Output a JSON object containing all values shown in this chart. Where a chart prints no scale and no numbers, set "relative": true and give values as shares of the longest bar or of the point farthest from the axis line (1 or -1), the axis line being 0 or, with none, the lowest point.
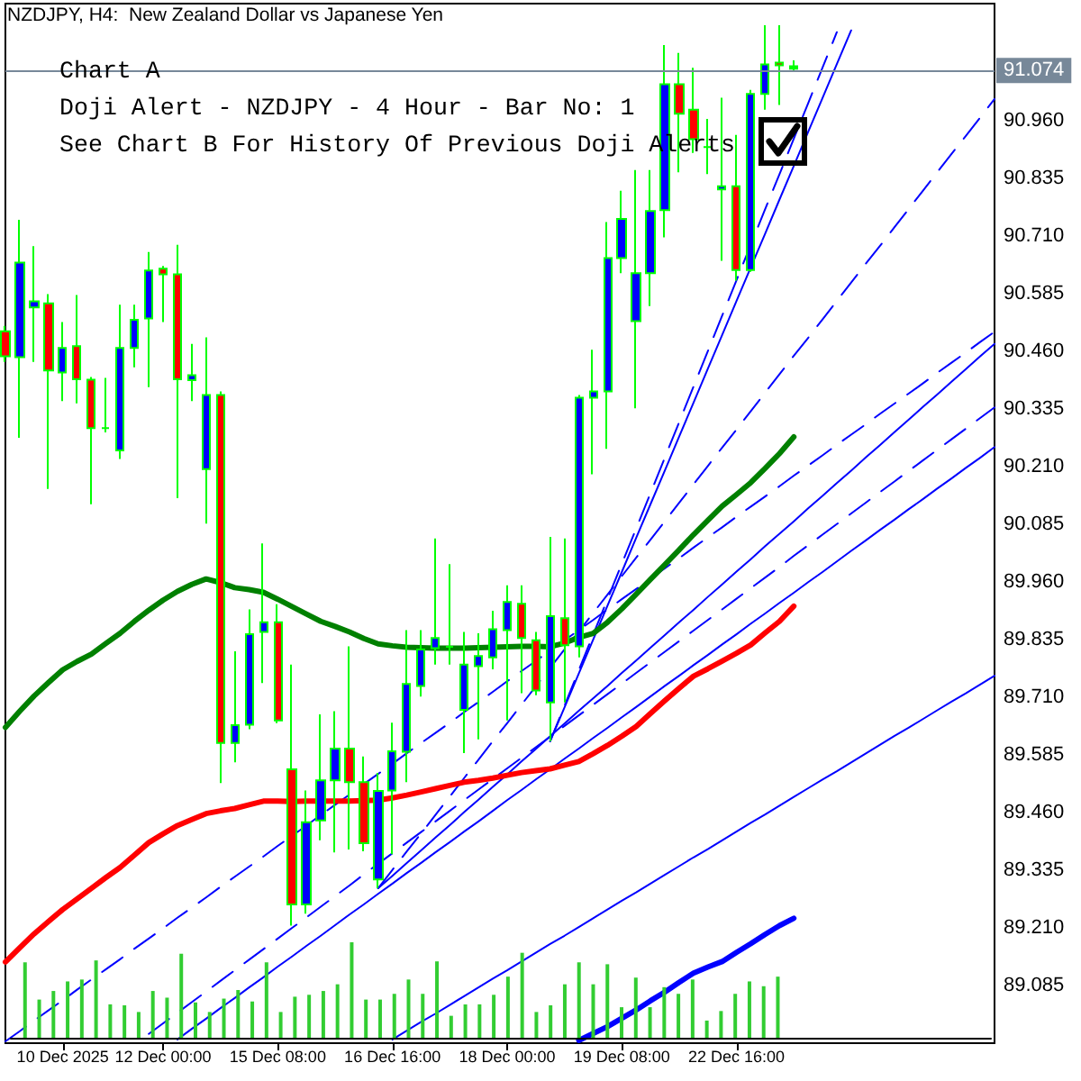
{
  "chart_data": [
    {
      "type": "candlestick",
      "title": "NZDJPY, H4:  New Zealand Dollar vs Japanese Yen",
      "annotations": [
        "Chart A",
        "Doji Alert - NZDJPY - 4 Hour - Bar No: 1",
        "See Chart B For History Of Previous Doji Alerts"
      ],
      "categories": [
        null,
        null,
        null,
        null,
        "10 Dec 2025",
        null,
        null,
        null,
        null,
        null,
        null,
        "12 Dec 00:00",
        null,
        null,
        null,
        null,
        null,
        null,
        null,
        "15 Dec 08:00",
        null,
        null,
        null,
        null,
        null,
        null,
        null,
        "16 Dec 16:00",
        null,
        null,
        null,
        null,
        null,
        null,
        null,
        "18 Dec 00:00",
        null,
        null,
        null,
        null,
        null,
        null,
        null,
        "19 Dec 08:00",
        null,
        null,
        null,
        null,
        null,
        null,
        null,
        "22 Dec 16:00",
        null,
        null,
        null,
        null,
        null,
        null,
        null,
        null,
        null,
        null,
        null,
        null,
        null,
        null,
        null,
        null,
        null,
        null
      ],
      "ohlc": [
        [
          90.504,
          90.516,
          90.438,
          90.45
        ],
        [
          90.448,
          90.746,
          90.273,
          90.653
        ],
        [
          90.556,
          90.689,
          90.438,
          90.569
        ],
        [
          90.565,
          90.585,
          90.162,
          90.419
        ],
        [
          90.415,
          90.524,
          90.353,
          90.468
        ],
        [
          90.472,
          90.583,
          90.348,
          90.4
        ],
        [
          90.399,
          90.405,
          90.129,
          90.294
        ],
        [
          90.294,
          90.403,
          90.285,
          90.294
        ],
        [
          90.246,
          90.562,
          90.227,
          90.468
        ],
        [
          90.468,
          90.562,
          90.426,
          90.529
        ],
        [
          90.532,
          90.676,
          90.383,
          90.636
        ],
        [
          90.64,
          90.646,
          90.524,
          90.628
        ],
        [
          90.628,
          90.692,
          90.142,
          90.4
        ],
        [
          90.398,
          90.477,
          90.353,
          90.409
        ],
        [
          90.205,
          90.491,
          90.087,
          90.366
        ],
        [
          90.366,
          90.374,
          89.524,
          89.611
        ],
        [
          89.611,
          89.81,
          89.569,
          89.65
        ],
        [
          89.651,
          89.901,
          89.641,
          89.847
        ],
        [
          89.852,
          90.044,
          89.741,
          89.873
        ],
        [
          89.873,
          89.912,
          89.654,
          89.66
        ],
        [
          89.554,
          89.781,
          89.215,
          89.261
        ],
        [
          89.261,
          89.508,
          89.241,
          89.439
        ],
        [
          89.443,
          89.673,
          89.4,
          89.53
        ],
        [
          89.53,
          89.68,
          89.374,
          89.599
        ],
        [
          89.599,
          89.821,
          89.38,
          89.526
        ],
        [
          89.526,
          89.582,
          89.376,
          89.394
        ],
        [
          89.315,
          89.546,
          89.296,
          89.507
        ],
        [
          89.508,
          89.655,
          89.37,
          89.593
        ],
        [
          89.592,
          89.856,
          89.526,
          89.739
        ],
        [
          89.735,
          89.856,
          89.712,
          89.814
        ],
        [
          89.817,
          90.055,
          89.781,
          89.839
        ],
        [
          89.82,
          89.999,
          89.781,
          89.82
        ],
        [
          89.683,
          89.852,
          89.589,
          89.781
        ],
        [
          89.778,
          89.849,
          89.619,
          89.8
        ],
        [
          89.797,
          89.898,
          89.771,
          89.858
        ],
        [
          89.856,
          89.953,
          89.66,
          89.917
        ],
        [
          89.913,
          89.953,
          89.719,
          89.839
        ],
        [
          89.834,
          89.852,
          89.715,
          89.725
        ],
        [
          89.699,
          90.058,
          89.615,
          89.886
        ],
        [
          89.882,
          90.055,
          89.699,
          89.823
        ],
        [
          89.821,
          90.366,
          89.797,
          90.36
        ],
        [
          90.36,
          90.464,
          90.194,
          90.374
        ],
        [
          90.374,
          90.741,
          90.249,
          90.663
        ],
        [
          90.663,
          90.809,
          90.63,
          90.748
        ],
        [
          90.526,
          90.854,
          90.337,
          90.63
        ],
        [
          90.63,
          90.854,
          90.559,
          90.765
        ],
        [
          90.767,
          91.125,
          90.708,
          91.04
        ],
        [
          91.04,
          91.108,
          90.849,
          90.976
        ],
        [
          90.985,
          91.076,
          90.891,
          90.921
        ],
        [
          90.904,
          90.965,
          90.845,
          90.904
        ],
        [
          90.812,
          91.011,
          90.657,
          90.819
        ],
        [
          90.819,
          90.93,
          90.614,
          90.637
        ],
        [
          90.637,
          91.028,
          90.633,
          91.019
        ],
        [
          91.019,
          91.168,
          90.985,
          91.083
        ],
        [
          91.087,
          91.168,
          90.995,
          91.081
        ],
        [
          91.079,
          91.092,
          91.07,
          91.074
        ],
        null,
        null,
        null,
        null,
        null,
        null,
        null,
        null,
        null,
        null,
        null,
        null,
        null,
        null
      ],
      "colors": [
        "#ff0000",
        "#0000ff",
        "#0000ff",
        "#ff0000",
        "#0000ff",
        "#ff0000",
        "#ff0000",
        "#00ff00",
        "#0000ff",
        "#0000ff",
        "#0000ff",
        "#ff0000",
        "#ff0000",
        "#0000ff",
        "#0000ff",
        "#ff0000",
        "#0000ff",
        "#0000ff",
        "#0000ff",
        "#ff0000",
        "#ff0000",
        "#0000ff",
        "#0000ff",
        "#0000ff",
        "#ff0000",
        "#ff0000",
        "#0000ff",
        "#0000ff",
        "#0000ff",
        "#0000ff",
        "#0000ff",
        "#00ff00",
        "#0000ff",
        "#0000ff",
        "#0000ff",
        "#0000ff",
        "#ff0000",
        "#ff0000",
        "#0000ff",
        "#ff0000",
        "#0000ff",
        "#0000ff",
        "#0000ff",
        "#0000ff",
        "#0000ff",
        "#0000ff",
        "#0000ff",
        "#ff0000",
        "#ff0000",
        "#00ff00",
        "#0000ff",
        "#ff0000",
        "#0000ff",
        "#0000ff",
        "#ff0000",
        "#00ff00",
        null,
        null,
        null,
        null,
        null,
        null,
        null,
        null,
        null,
        null,
        null,
        null,
        null,
        null
      ],
      "series": [
        {
          "type": "line",
          "color": "#008000",
          "values": [
            89.645,
            89.68,
            89.713,
            89.742,
            89.77,
            89.788,
            89.804,
            89.827,
            89.849,
            89.875,
            89.899,
            89.921,
            89.94,
            89.955,
            89.967,
            89.959,
            89.948,
            89.944,
            89.938,
            89.923,
            89.907,
            89.891,
            89.875,
            89.864,
            89.852,
            89.838,
            89.826,
            89.822,
            89.819,
            89.818,
            89.817,
            89.817,
            89.817,
            89.818,
            89.819,
            89.82,
            89.821,
            89.821,
            89.82,
            89.828,
            89.84,
            89.849,
            89.873,
            89.902,
            89.934,
            89.966,
            89.998,
            90.03,
            90.063,
            90.094,
            90.125,
            90.15,
            90.176,
            90.207,
            90.239,
            90.275,
            null,
            null,
            null,
            null,
            null,
            null,
            null,
            null,
            null,
            null,
            null,
            null,
            null,
            null
          ]
        },
        {
          "type": "line",
          "color": "#ff0000",
          "values": [
            89.136,
            89.167,
            89.197,
            89.224,
            89.25,
            89.273,
            89.296,
            89.319,
            89.341,
            89.368,
            89.395,
            89.414,
            89.432,
            89.445,
            89.458,
            89.464,
            89.469,
            89.477,
            89.485,
            89.485,
            89.484,
            89.485,
            89.485,
            89.485,
            89.485,
            89.486,
            89.487,
            89.492,
            89.498,
            89.505,
            89.512,
            89.519,
            89.526,
            89.53,
            89.535,
            89.541,
            89.547,
            89.551,
            89.555,
            89.563,
            89.571,
            89.588,
            89.606,
            89.626,
            89.647,
            89.675,
            89.703,
            89.73,
            89.756,
            89.772,
            89.789,
            89.806,
            89.824,
            89.85,
            89.875,
            89.908,
            null,
            null,
            null,
            null,
            null,
            null,
            null,
            null,
            null,
            null,
            null,
            null,
            null,
            null
          ]
        },
        {
          "type": "line",
          "color": "#0000ff",
          "values": [
            null,
            null,
            null,
            null,
            null,
            null,
            null,
            null,
            null,
            null,
            null,
            null,
            null,
            null,
            null,
            null,
            null,
            null,
            null,
            null,
            null,
            null,
            null,
            null,
            null,
            null,
            null,
            null,
            null,
            null,
            null,
            null,
            null,
            null,
            null,
            null,
            null,
            null,
            null,
            null,
            88.966,
            88.981,
            88.996,
            89.014,
            89.032,
            89.052,
            89.071,
            89.092,
            89.112,
            89.125,
            89.137,
            89.157,
            89.176,
            89.196,
            89.215,
            89.231,
            null,
            null,
            null,
            null,
            null,
            null,
            null,
            null,
            null,
            null,
            null,
            null,
            null,
            null
          ]
        },
        {
          "type": "line",
          "color": "#0000ff",
          "values": [
            null,
            null,
            null,
            null,
            null,
            null,
            null,
            null,
            null,
            null,
            null,
            null,
            null,
            null,
            null,
            null,
            null,
            null,
            null,
            null,
            null,
            null,
            null,
            null,
            null,
            null,
            null,
            88.968,
            88.987,
            89.006,
            89.024,
            89.043,
            89.062,
            89.081,
            89.1,
            89.118,
            89.137,
            89.156,
            89.175,
            89.193,
            89.212,
            89.231,
            89.25,
            89.269,
            89.287,
            89.306,
            89.325,
            89.344,
            89.363,
            89.381,
            89.4,
            89.419,
            89.438,
            89.456,
            89.475,
            89.494,
            89.513,
            89.532,
            89.55,
            89.569,
            89.588,
            89.607,
            89.626,
            89.644,
            89.663,
            89.682,
            89.701,
            89.719,
            89.738,
            89.757
          ]
        },
        {
          "type": "line",
          "color": "#0000ff",
          "line_style": "dashed",
          "values": [
            88.964,
            88.986,
            89.009,
            89.031,
            89.053,
            89.076,
            89.098,
            89.12,
            89.142,
            89.165,
            89.187,
            89.209,
            89.232,
            89.254,
            89.276,
            89.299,
            89.321,
            89.343,
            89.365,
            89.388,
            89.41,
            89.432,
            89.455,
            89.477,
            89.499,
            89.522,
            89.544,
            89.566,
            89.589,
            89.611,
            89.633,
            89.655,
            89.678,
            89.7,
            89.722,
            89.745,
            89.767,
            89.789,
            89.812,
            89.834,
            89.856,
            89.878,
            89.901,
            89.923,
            89.945,
            89.968,
            89.99,
            90.012,
            90.035,
            90.057,
            90.079,
            90.102,
            90.124,
            90.146,
            90.168,
            90.191,
            90.213,
            90.235,
            90.258,
            90.28,
            90.302,
            90.325,
            90.347,
            90.369,
            90.391,
            90.414,
            90.436,
            90.458,
            90.481,
            90.503
          ]
        },
        {
          "type": "line",
          "color": "#0000ff",
          "values": [
            null,
            null,
            null,
            null,
            null,
            null,
            null,
            null,
            null,
            null,
            null,
            null,
            88.968,
            88.991,
            89.013,
            89.036,
            89.058,
            89.081,
            89.103,
            89.126,
            89.148,
            89.171,
            89.193,
            89.216,
            89.239,
            89.261,
            89.284,
            89.306,
            89.329,
            89.351,
            89.374,
            89.396,
            89.419,
            89.441,
            89.464,
            89.487,
            89.509,
            89.532,
            89.554,
            89.577,
            89.599,
            89.622,
            89.644,
            89.667,
            89.689,
            89.712,
            89.735,
            89.757,
            89.78,
            89.802,
            89.825,
            89.847,
            89.87,
            89.892,
            89.915,
            89.937,
            89.96,
            89.982,
            90.005,
            90.028,
            90.05,
            90.073,
            90.095,
            90.118,
            90.14,
            90.163,
            90.185,
            90.208,
            90.23,
            90.253
          ]
        },
        {
          "type": "line",
          "color": "#0000ff",
          "values": [
            null,
            null,
            null,
            null,
            null,
            null,
            null,
            null,
            null,
            null,
            null,
            null,
            null,
            null,
            null,
            null,
            null,
            null,
            null,
            null,
            null,
            null,
            null,
            null,
            null,
            null,
            89.296,
            89.323,
            89.351,
            89.378,
            89.406,
            89.433,
            89.461,
            89.488,
            89.516,
            89.543,
            89.571,
            89.598,
            89.626,
            89.653,
            89.681,
            89.708,
            89.735,
            89.763,
            89.79,
            89.818,
            89.845,
            89.873,
            89.9,
            89.928,
            89.955,
            89.983,
            90.01,
            90.038,
            90.065,
            90.092,
            90.12,
            90.147,
            90.175,
            90.202,
            90.23,
            90.257,
            90.285,
            90.312,
            90.34,
            90.367,
            90.395,
            90.422,
            90.45,
            90.477
          ]
        },
        {
          "type": "line",
          "color": "#0000ff",
          "line_style": "dashed",
          "values": [
            null,
            null,
            null,
            null,
            null,
            null,
            null,
            null,
            null,
            null,
            null,
            null,
            null,
            null,
            null,
            null,
            null,
            null,
            null,
            null,
            null,
            null,
            null,
            null,
            null,
            null,
            89.296,
            89.336,
            89.376,
            89.415,
            89.455,
            89.495,
            89.535,
            89.575,
            89.615,
            89.654,
            89.694,
            89.734,
            89.774,
            89.814,
            89.853,
            89.893,
            89.933,
            89.973,
            90.013,
            90.052,
            90.092,
            90.132,
            90.172,
            90.212,
            90.252,
            90.291,
            90.331,
            90.371,
            90.411,
            90.451,
            90.49,
            90.53,
            90.57,
            90.61,
            90.65,
            90.689,
            90.729,
            90.769,
            90.809,
            90.849,
            90.889,
            90.928,
            90.968,
            91.008
          ]
        },
        {
          "type": "line",
          "color": "#0000ff",
          "line_style": "dashed",
          "values": [
            null,
            null,
            null,
            null,
            null,
            null,
            null,
            null,
            null,
            null,
            88.98,
            89.003,
            89.026,
            89.049,
            89.072,
            89.095,
            89.118,
            89.141,
            89.164,
            89.187,
            89.21,
            89.233,
            89.256,
            89.279,
            89.302,
            89.326,
            89.349,
            89.372,
            89.395,
            89.418,
            89.441,
            89.464,
            89.487,
            89.51,
            89.533,
            89.556,
            89.579,
            89.602,
            89.625,
            89.648,
            89.671,
            89.694,
            89.717,
            89.74,
            89.763,
            89.786,
            89.809,
            89.832,
            89.855,
            89.878,
            89.901,
            89.924,
            89.947,
            89.97,
            89.993,
            90.017,
            90.04,
            90.063,
            90.086,
            90.109,
            90.132,
            90.155,
            90.178,
            90.201,
            90.224,
            90.247,
            90.27,
            90.293,
            90.316,
            90.339
          ]
        },
        {
          "type": "line",
          "color": "#0000ff",
          "values": [
            null,
            null,
            null,
            null,
            null,
            null,
            null,
            null,
            null,
            null,
            null,
            null,
            null,
            null,
            null,
            null,
            null,
            null,
            null,
            null,
            null,
            null,
            null,
            null,
            null,
            null,
            null,
            null,
            null,
            null,
            null,
            null,
            null,
            null,
            null,
            null,
            null,
            null,
            89.615,
            89.688,
            89.762,
            89.835,
            89.909,
            89.982,
            90.056,
            90.129,
            90.202,
            90.276,
            90.349,
            90.423,
            90.496,
            90.57,
            90.643,
            90.716,
            90.79,
            90.863,
            90.937,
            91.01,
            91.084,
            91.157,
            null,
            null,
            null,
            null,
            null,
            null,
            null,
            null,
            null,
            null
          ]
        },
        {
          "type": "line",
          "color": "#0000ff",
          "line_style": "dashed",
          "values": [
            null,
            null,
            null,
            null,
            null,
            null,
            null,
            null,
            null,
            null,
            null,
            null,
            null,
            null,
            null,
            null,
            null,
            null,
            null,
            null,
            null,
            null,
            null,
            null,
            null,
            null,
            null,
            null,
            null,
            null,
            null,
            null,
            null,
            null,
            null,
            null,
            null,
            null,
            89.615,
            89.692,
            89.769,
            89.846,
            89.923,
            90.0,
            90.076,
            90.153,
            90.23,
            90.307,
            90.384,
            90.461,
            90.538,
            90.615,
            90.692,
            90.769,
            90.845,
            90.922,
            90.999,
            91.076,
            91.153,
            null,
            null,
            null,
            null,
            null,
            null,
            null,
            null,
            null,
            null,
            null
          ]
        }
      ],
      "ylim": [
        88.96,
        91.215
      ],
      "yticks": [
        89.085,
        {
          "value": 89.21,
          "label": "89.210"
        },
        89.335,
        {
          "value": 89.46,
          "label": "89.460"
        },
        89.585,
        {
          "value": 89.71,
          "label": "89.710"
        },
        89.835,
        {
          "value": 89.96,
          "label": "89.960"
        },
        90.085,
        {
          "value": 90.21,
          "label": "90.210"
        },
        90.335,
        {
          "value": 90.46,
          "label": "90.460"
        },
        90.585,
        {
          "value": 90.71,
          "label": "90.710"
        },
        90.835,
        {
          "value": 90.96,
          "label": "90.960"
        }
      ],
      "ref_lines": [
        {
          "axis": "y",
          "value": 91.074,
          "label": "91.074",
          "color": "#778899"
        }
      ]
    },
    {
      "type": "bar",
      "relative": true,
      "color": "#32cd32",
      "categories": [
        null,
        null,
        null,
        null,
        null,
        null,
        null,
        null,
        null,
        null,
        null,
        null,
        null,
        null,
        null,
        null,
        null,
        null,
        null,
        null,
        null,
        null,
        null,
        null,
        null,
        null,
        null,
        null,
        null,
        null,
        null,
        null,
        null,
        null,
        null,
        null,
        null,
        null,
        null,
        null,
        null,
        null,
        null,
        null,
        null,
        null,
        null,
        null,
        null,
        null,
        null,
        null,
        null,
        null,
        null,
        null,
        null,
        null,
        null,
        null,
        null,
        null,
        null,
        null,
        null,
        null,
        null,
        null,
        null,
        null
      ],
      "values": [
        null,
        0.79,
        0.4,
        0.49,
        0.59,
        0.61,
        0.81,
        0.35,
        0.34,
        0.27,
        0.49,
        0.42,
        0.88,
        0.37,
        0.27,
        0.41,
        0.5,
        0.38,
        0.79,
        0.27,
        0.43,
        0.45,
        0.49,
        0.56,
        1,
        0.4,
        0.4,
        0.46,
        0.61,
        0.46,
        0.8,
        0.23,
        0.35,
        0.35,
        0.45,
        0.64,
        0.89,
        0.27,
        0.34,
        0.56,
        0.79,
        0.56,
        0.77,
        0.32,
        0.63,
        0.32,
        0.53,
        0.46,
        0.61,
        0.18,
        0.28,
        0.46,
        0.59,
        0.54,
        0.64,
        null,
        null,
        null,
        null,
        null,
        null,
        null,
        null,
        null,
        null,
        null,
        null,
        null,
        null,
        null
      ]
    }
  ]
}
